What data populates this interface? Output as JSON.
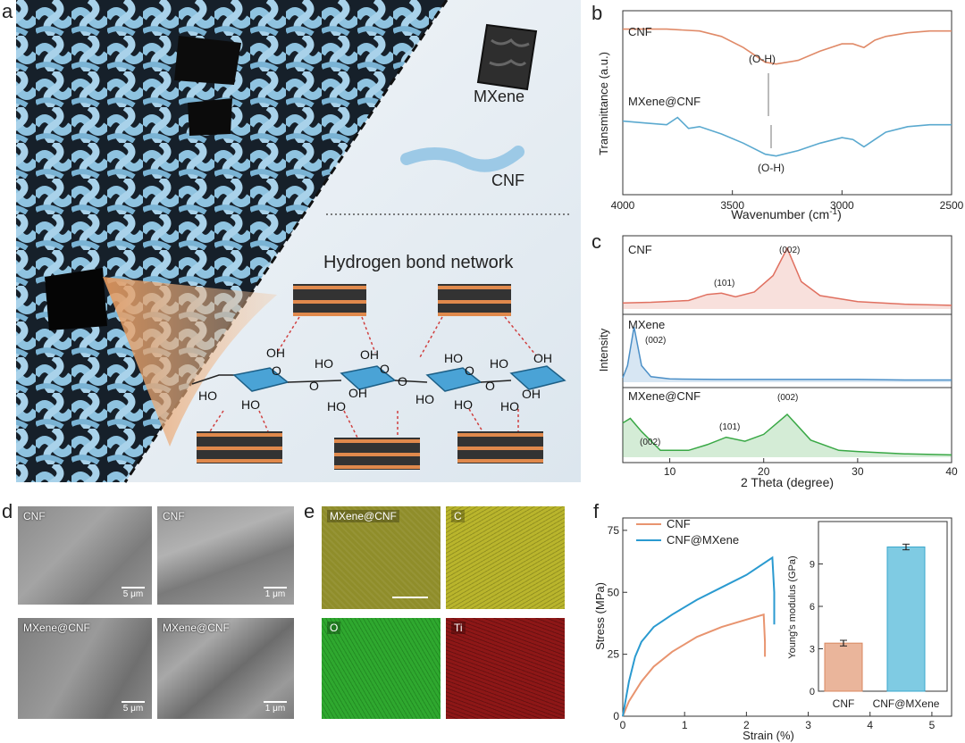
{
  "panels": {
    "a": {
      "label": "a",
      "mxene": "MXene",
      "cnf": "CNF",
      "network_title": "Hydrogen bond network",
      "chem": {
        "oh": "OH",
        "ho": "HO",
        "o": "O"
      }
    },
    "b": {
      "label": "b",
      "ylabel": "Transmittance (a.u.)",
      "xlabel_prefix": "Wavenumber (cm",
      "xlabel_sup": "-1",
      "xlabel_suffix": ")",
      "xticks": [
        "4000",
        "3500",
        "3000",
        "2500"
      ],
      "series_labels": [
        "CNF",
        "MXene@CNF"
      ],
      "annotations": [
        "(O-H)",
        "(O-H)"
      ]
    },
    "c": {
      "label": "c",
      "ylabel": "Intensity",
      "xlabel": "2 Theta (degree)",
      "xticks": [
        "10",
        "20",
        "30",
        "40"
      ],
      "series_labels": [
        "CNF",
        "MXene",
        "MXene@CNF"
      ],
      "peak_labels": {
        "cnf_101": "(101)",
        "cnf_002": "(002)",
        "mxene_002": "(002)",
        "mc_002_low": "(002)",
        "mc_101": "(101)",
        "mc_002_high": "(002)"
      }
    },
    "d": {
      "label": "d",
      "images": [
        {
          "name": "CNF",
          "scale": "5 μm"
        },
        {
          "name": "CNF",
          "scale": "1 μm"
        },
        {
          "name": "MXene@CNF",
          "scale": "5 μm"
        },
        {
          "name": "MXene@CNF",
          "scale": "1 μm"
        }
      ]
    },
    "e": {
      "label": "e",
      "maps": [
        "MXene@CNF",
        "C",
        "O",
        "Ti"
      ],
      "colors": {
        "overlay": "#8f8d2a",
        "C": "#b9b52c",
        "O": "#2fa82f",
        "Ti": "#8e1717"
      }
    },
    "f": {
      "label": "f",
      "ylabel": "Stress (MPa)",
      "xlabel": "Strain (%)",
      "xticks": [
        "0",
        "1",
        "2",
        "3",
        "4",
        "5"
      ],
      "yticks": [
        "0",
        "25",
        "50",
        "75"
      ],
      "legend": [
        "CNF",
        "CNF@MXene"
      ],
      "inset": {
        "ylabel": "Young's modulus (GPa)",
        "yticks": [
          "0",
          "3",
          "6",
          "9"
        ],
        "categories": [
          "CNF",
          "CNF@MXene"
        ]
      }
    }
  },
  "chart_data": [
    {
      "type": "line",
      "panel": "b",
      "xlabel": "Wavenumber (cm-1)",
      "ylabel": "Transmittance (a.u.)",
      "xlim": [
        4000,
        2500
      ],
      "series": [
        {
          "name": "CNF",
          "color": "#e08a68",
          "x": [
            4000,
            3800,
            3650,
            3550,
            3450,
            3350,
            3300,
            3200,
            3100,
            3000,
            2950,
            2900,
            2850,
            2800,
            2700,
            2600,
            2500
          ],
          "y": [
            0.9,
            0.9,
            0.89,
            0.86,
            0.8,
            0.72,
            0.71,
            0.73,
            0.78,
            0.82,
            0.82,
            0.8,
            0.84,
            0.86,
            0.88,
            0.89,
            0.89
          ]
        },
        {
          "name": "MXene@CNF",
          "color": "#5aa9cf",
          "x": [
            4000,
            3900,
            3800,
            3750,
            3700,
            3650,
            3550,
            3450,
            3350,
            3300,
            3200,
            3100,
            3000,
            2950,
            2900,
            2850,
            2800,
            2700,
            2600,
            2500
          ],
          "y": [
            0.4,
            0.39,
            0.38,
            0.42,
            0.36,
            0.37,
            0.33,
            0.28,
            0.22,
            0.21,
            0.24,
            0.28,
            0.31,
            0.3,
            0.26,
            0.3,
            0.34,
            0.37,
            0.38,
            0.38
          ]
        }
      ]
    },
    {
      "type": "line",
      "panel": "c",
      "xlabel": "2 Theta (degree)",
      "ylabel": "Intensity",
      "xlim": [
        5,
        40
      ],
      "series": [
        {
          "name": "CNF",
          "color": "#e07060",
          "x": [
            5,
            8,
            12,
            14,
            15.5,
            17,
            19,
            21,
            22.5,
            24,
            26,
            30,
            35,
            40
          ],
          "y": [
            0.1,
            0.11,
            0.14,
            0.24,
            0.26,
            0.2,
            0.28,
            0.55,
            1.0,
            0.45,
            0.22,
            0.12,
            0.08,
            0.06
          ]
        },
        {
          "name": "MXene",
          "color": "#4b8fc7",
          "x": [
            5,
            5.5,
            6.2,
            7,
            8,
            10,
            15,
            20,
            25,
            30,
            35,
            40
          ],
          "y": [
            0.08,
            0.3,
            1.0,
            0.3,
            0.1,
            0.06,
            0.05,
            0.05,
            0.05,
            0.05,
            0.04,
            0.04
          ]
        },
        {
          "name": "MXene@CNF",
          "color": "#39a845",
          "x": [
            5,
            5.8,
            7,
            9,
            12,
            14,
            16,
            18,
            20,
            22.5,
            25,
            28,
            30,
            35,
            40
          ],
          "y": [
            0.6,
            0.68,
            0.45,
            0.12,
            0.12,
            0.22,
            0.35,
            0.28,
            0.4,
            0.75,
            0.3,
            0.12,
            0.1,
            0.06,
            0.04
          ]
        }
      ]
    },
    {
      "type": "line",
      "panel": "f",
      "xlabel": "Strain (%)",
      "ylabel": "Stress (MPa)",
      "xlim": [
        0,
        5
      ],
      "ylim": [
        0,
        80
      ],
      "series": [
        {
          "name": "CNF",
          "color": "#e8946f",
          "x": [
            0,
            0.1,
            0.3,
            0.5,
            0.8,
            1.2,
            1.6,
            2.0,
            2.28,
            2.3,
            2.3
          ],
          "y": [
            0,
            6,
            14,
            20,
            26,
            32,
            36,
            39,
            41,
            30,
            24
          ]
        },
        {
          "name": "CNF@MXene",
          "color": "#2a9ad0",
          "x": [
            0,
            0.1,
            0.2,
            0.3,
            0.5,
            0.8,
            1.2,
            1.6,
            2.0,
            2.42,
            2.45,
            2.45
          ],
          "y": [
            0,
            14,
            24,
            30,
            36,
            41,
            47,
            52,
            57,
            64,
            50,
            37
          ]
        }
      ]
    },
    {
      "type": "bar",
      "panel": "f-inset",
      "ylabel": "Young's modulus (GPa)",
      "ylim": [
        0,
        12
      ],
      "categories": [
        "CNF",
        "CNF@MXene"
      ],
      "values": [
        3.4,
        10.2
      ],
      "errors": [
        0.2,
        0.2
      ],
      "colors": [
        "#eab59b",
        "#7fcbe3"
      ]
    }
  ]
}
